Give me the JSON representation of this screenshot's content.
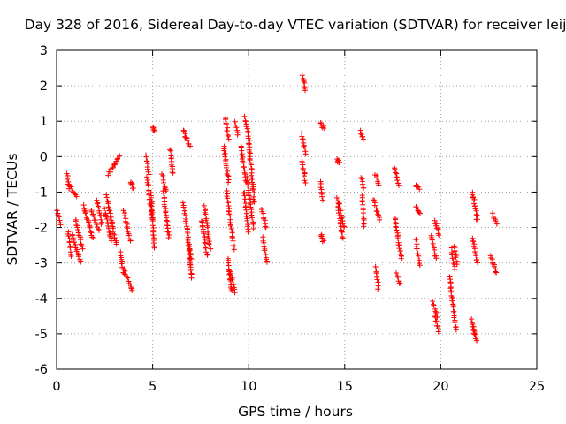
{
  "chart_data": {
    "type": "scatter",
    "title": "Day 328 of 2016, Sidereal Day-to-day VTEC variation (SDTVAR) for receiver leij",
    "xlabel": "GPS time / hours",
    "ylabel": "SDTVAR / TECUs",
    "xlim": [
      0,
      25
    ],
    "ylim": [
      -6,
      3
    ],
    "xticks": [
      0,
      5,
      10,
      15,
      20,
      25
    ],
    "yticks": [
      -6,
      -5,
      -4,
      -3,
      -2,
      -1,
      0,
      1,
      2,
      3
    ],
    "grid": true,
    "marker": "+",
    "color": "#ff0000",
    "series": [
      {
        "name": "SDTVAR",
        "tracks": [
          {
            "t0": 0.0,
            "t1": 0.2,
            "v0": -1.5,
            "v1": -1.9
          },
          {
            "t0": 0.55,
            "t1": 0.65,
            "v0": -0.5,
            "v1": -0.9
          },
          {
            "t0": 0.6,
            "t1": 0.75,
            "v0": -2.1,
            "v1": -2.8
          },
          {
            "t0": 0.65,
            "t1": 1.05,
            "v0": -0.8,
            "v1": -1.1
          },
          {
            "t0": 0.8,
            "t1": 1.25,
            "v0": -2.2,
            "v1": -3.0
          },
          {
            "t0": 1.0,
            "t1": 1.35,
            "v0": -1.8,
            "v1": -2.6
          },
          {
            "t0": 1.4,
            "t1": 1.9,
            "v0": -1.4,
            "v1": -2.3
          },
          {
            "t0": 1.8,
            "t1": 2.2,
            "v0": -1.5,
            "v1": -2.1
          },
          {
            "t0": 2.1,
            "t1": 2.35,
            "v0": -1.2,
            "v1": -1.9
          },
          {
            "t0": 2.5,
            "t1": 2.85,
            "v0": -1.5,
            "v1": -2.4
          },
          {
            "t0": 2.7,
            "t1": 3.3,
            "v0": -0.5,
            "v1": 0.05
          },
          {
            "t0": 2.6,
            "t1": 3.1,
            "v0": -1.1,
            "v1": -2.5
          },
          {
            "t0": 3.3,
            "t1": 3.5,
            "v0": -2.7,
            "v1": -3.3
          },
          {
            "t0": 3.5,
            "t1": 3.95,
            "v0": -3.2,
            "v1": -3.75
          },
          {
            "t0": 3.5,
            "t1": 3.85,
            "v0": -1.5,
            "v1": -2.4
          },
          {
            "t0": 3.85,
            "t1": 4.0,
            "v0": -0.7,
            "v1": -0.9
          },
          {
            "t0": 4.65,
            "t1": 4.8,
            "v0": 0.05,
            "v1": -0.5
          },
          {
            "t0": 4.7,
            "t1": 5.0,
            "v0": -0.6,
            "v1": -1.8
          },
          {
            "t0": 4.9,
            "t1": 5.1,
            "v0": -1.0,
            "v1": -2.6
          },
          {
            "t0": 5.0,
            "t1": 5.08,
            "v0": 0.85,
            "v1": 0.75
          },
          {
            "t0": 5.5,
            "t1": 5.7,
            "v0": -0.5,
            "v1": -1.0
          },
          {
            "t0": 5.55,
            "t1": 5.85,
            "v0": -1.0,
            "v1": -2.3
          },
          {
            "t0": 5.9,
            "t1": 6.05,
            "v0": 0.2,
            "v1": -0.5
          },
          {
            "t0": 6.6,
            "t1": 6.8,
            "v0": 0.75,
            "v1": 0.45
          },
          {
            "t0": 6.7,
            "t1": 6.95,
            "v0": 0.55,
            "v1": 0.3
          },
          {
            "t0": 6.6,
            "t1": 7.0,
            "v0": -1.3,
            "v1": -2.9
          },
          {
            "t0": 6.85,
            "t1": 7.05,
            "v0": -2.5,
            "v1": -3.4
          },
          {
            "t0": 7.55,
            "t1": 7.85,
            "v0": -1.8,
            "v1": -2.8
          },
          {
            "t0": 7.7,
            "t1": 8.0,
            "v0": -1.4,
            "v1": -2.6
          },
          {
            "t0": 8.8,
            "t1": 8.95,
            "v0": 1.1,
            "v1": 0.5
          },
          {
            "t0": 8.7,
            "t1": 8.95,
            "v0": 0.3,
            "v1": -0.7
          },
          {
            "t0": 8.85,
            "t1": 9.25,
            "v0": -1.0,
            "v1": -2.6
          },
          {
            "t0": 8.9,
            "t1": 9.1,
            "v0": -2.9,
            "v1": -3.8
          },
          {
            "t0": 9.0,
            "t1": 9.3,
            "v0": -3.2,
            "v1": -3.8
          },
          {
            "t0": 9.3,
            "t1": 9.45,
            "v0": 0.95,
            "v1": 0.6
          },
          {
            "t0": 9.6,
            "t1": 9.85,
            "v0": 0.3,
            "v1": -0.7
          },
          {
            "t0": 9.8,
            "t1": 10.05,
            "v0": 1.1,
            "v1": 0.4
          },
          {
            "t0": 9.75,
            "t1": 10.0,
            "v0": -1.0,
            "v1": -2.1
          },
          {
            "t0": 9.9,
            "t1": 10.25,
            "v0": -0.6,
            "v1": -2.0
          },
          {
            "t0": 10.0,
            "t1": 10.3,
            "v0": 0.4,
            "v1": -1.3
          },
          {
            "t0": 10.7,
            "t1": 10.9,
            "v0": -1.5,
            "v1": -2.0
          },
          {
            "t0": 10.75,
            "t1": 10.95,
            "v0": -2.3,
            "v1": -3.0
          },
          {
            "t0": 12.8,
            "t1": 12.95,
            "v0": 2.3,
            "v1": 1.85
          },
          {
            "t0": 12.75,
            "t1": 12.95,
            "v0": 0.65,
            "v1": 0.1
          },
          {
            "t0": 12.8,
            "t1": 12.95,
            "v0": -0.1,
            "v1": -0.7
          },
          {
            "t0": 13.75,
            "t1": 13.9,
            "v0": 0.95,
            "v1": 0.8
          },
          {
            "t0": 13.75,
            "t1": 13.85,
            "v0": -0.7,
            "v1": -1.2
          },
          {
            "t0": 13.75,
            "t1": 13.9,
            "v0": -2.2,
            "v1": -2.4
          },
          {
            "t0": 14.6,
            "t1": 14.7,
            "v0": -0.1,
            "v1": -0.15
          },
          {
            "t0": 14.6,
            "t1": 14.9,
            "v0": -1.2,
            "v1": -2.3
          },
          {
            "t0": 14.7,
            "t1": 14.95,
            "v0": -1.3,
            "v1": -2.0
          },
          {
            "t0": 15.8,
            "t1": 15.95,
            "v0": 0.75,
            "v1": 0.5
          },
          {
            "t0": 15.85,
            "t1": 16.0,
            "v0": -0.6,
            "v1": -0.9
          },
          {
            "t0": 15.9,
            "t1": 16.0,
            "v0": -1.1,
            "v1": -2.0
          },
          {
            "t0": 16.6,
            "t1": 16.8,
            "v0": -0.5,
            "v1": -0.8
          },
          {
            "t0": 16.5,
            "t1": 16.8,
            "v0": -1.2,
            "v1": -1.8
          },
          {
            "t0": 16.6,
            "t1": 16.75,
            "v0": -3.1,
            "v1": -3.7
          },
          {
            "t0": 17.6,
            "t1": 17.8,
            "v0": -0.3,
            "v1": -0.8
          },
          {
            "t0": 17.6,
            "t1": 17.95,
            "v0": -1.7,
            "v1": -2.9
          },
          {
            "t0": 17.7,
            "t1": 17.9,
            "v0": -3.3,
            "v1": -3.6
          },
          {
            "t0": 18.7,
            "t1": 18.9,
            "v0": -0.8,
            "v1": -0.9
          },
          {
            "t0": 18.7,
            "t1": 18.9,
            "v0": -1.4,
            "v1": -1.6
          },
          {
            "t0": 18.7,
            "t1": 18.9,
            "v0": -2.3,
            "v1": -3.1
          },
          {
            "t0": 19.5,
            "t1": 19.75,
            "v0": -2.2,
            "v1": -2.9
          },
          {
            "t0": 19.7,
            "t1": 19.9,
            "v0": -1.8,
            "v1": -2.2
          },
          {
            "t0": 19.6,
            "t1": 19.8,
            "v0": -4.1,
            "v1": -4.5
          },
          {
            "t0": 19.7,
            "t1": 19.9,
            "v0": -4.5,
            "v1": -4.9
          },
          {
            "t0": 20.55,
            "t1": 20.75,
            "v0": -2.6,
            "v1": -3.2
          },
          {
            "t0": 20.45,
            "t1": 20.8,
            "v0": -3.4,
            "v1": -4.9
          },
          {
            "t0": 20.7,
            "t1": 20.85,
            "v0": -2.5,
            "v1": -3.0
          },
          {
            "t0": 21.6,
            "t1": 21.8,
            "v0": -4.6,
            "v1": -5.0
          },
          {
            "t0": 21.7,
            "t1": 21.9,
            "v0": -4.9,
            "v1": -5.2
          },
          {
            "t0": 21.65,
            "t1": 21.9,
            "v0": -1.0,
            "v1": -1.8
          },
          {
            "t0": 21.65,
            "t1": 21.9,
            "v0": -2.3,
            "v1": -3.0
          },
          {
            "t0": 22.7,
            "t1": 22.9,
            "v0": -1.6,
            "v1": -1.9
          },
          {
            "t0": 22.6,
            "t1": 22.9,
            "v0": -2.8,
            "v1": -3.3
          }
        ]
      }
    ]
  }
}
